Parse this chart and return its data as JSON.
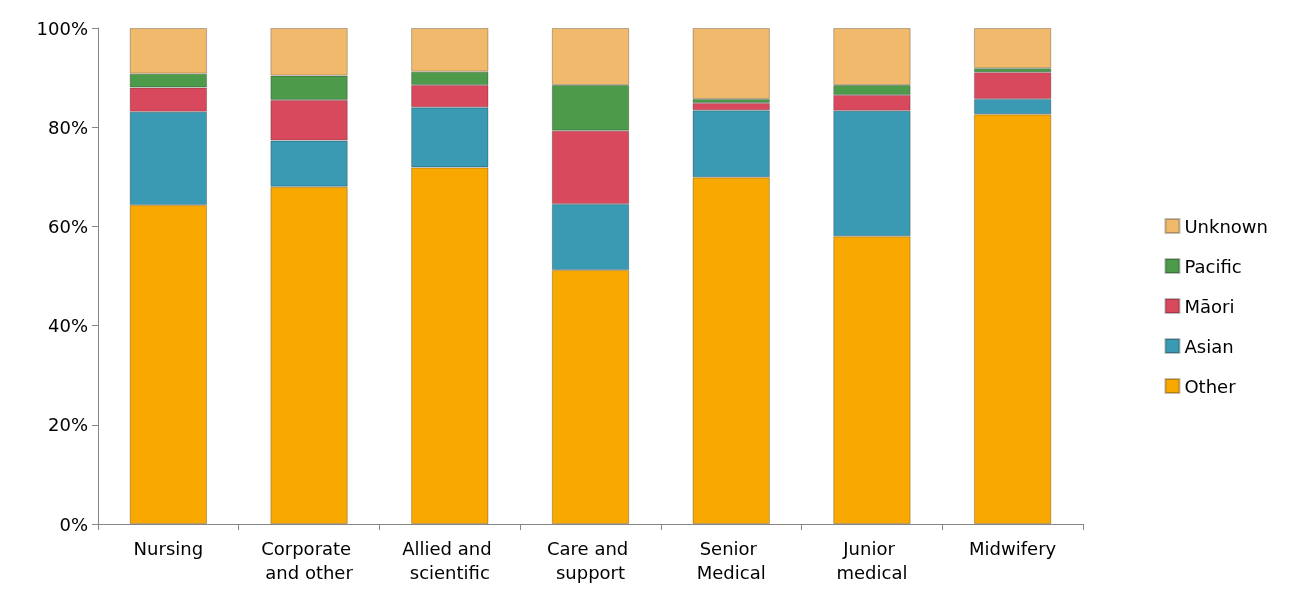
{
  "chart_data": {
    "type": "bar",
    "stacked": true,
    "categories": [
      "Nursing",
      "Corporate and other",
      "Allied and scientific",
      "Care and support",
      "Senior Medical",
      "Junior medical",
      "Midwifery"
    ],
    "series": [
      {
        "name": "Other",
        "color": "#f9a800",
        "values": [
          64.3,
          68.0,
          71.9,
          51.2,
          69.9,
          58.0,
          82.6
        ]
      },
      {
        "name": "Asian",
        "color": "#3b9ab3",
        "values": [
          18.8,
          9.3,
          12.1,
          13.3,
          13.5,
          25.3,
          3.1
        ]
      },
      {
        "name": "Māori",
        "color": "#d9495e",
        "values": [
          4.9,
          8.2,
          4.5,
          14.8,
          1.5,
          3.2,
          5.4
        ]
      },
      {
        "name": "Pacific",
        "color": "#4e9a4b",
        "values": [
          2.8,
          4.9,
          2.7,
          9.2,
          0.8,
          2.0,
          0.8
        ]
      },
      {
        "name": "Unknown",
        "color": "#f0b96b",
        "values": [
          9.2,
          9.6,
          8.8,
          11.5,
          14.3,
          11.5,
          8.1
        ]
      }
    ],
    "ylim": [
      0,
      100
    ],
    "yticks": [
      {
        "value": 0,
        "label": "0%"
      },
      {
        "value": 20,
        "label": "20%"
      },
      {
        "value": 40,
        "label": "40%"
      },
      {
        "value": 60,
        "label": "60%"
      },
      {
        "value": 80,
        "label": "80%"
      },
      {
        "value": 100,
        "label": "100%"
      }
    ],
    "grid": false,
    "legend": "right"
  }
}
